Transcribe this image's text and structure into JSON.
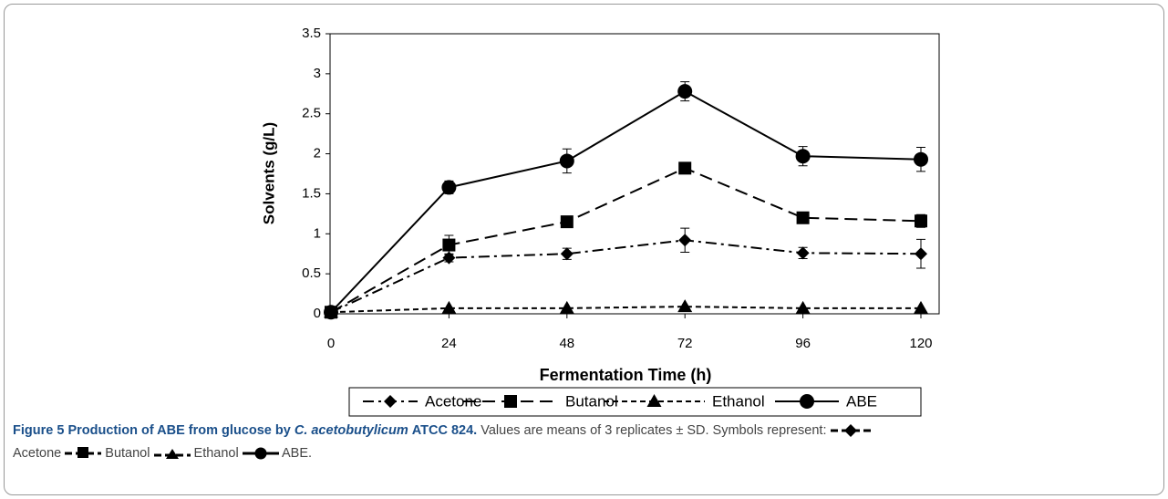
{
  "chart_data": {
    "type": "line",
    "x": [
      0,
      24,
      48,
      72,
      96,
      120
    ],
    "xlim": [
      0,
      120
    ],
    "xticks": [
      0,
      24,
      48,
      72,
      96,
      120
    ],
    "ylim": [
      0,
      3.5
    ],
    "yticks": [
      0,
      0.5,
      1,
      1.5,
      2,
      2.5,
      3,
      3.5
    ],
    "xlabel": "Fermentation Time (h)",
    "ylabel": "Solvents (g/L)",
    "legend": "bottom",
    "series": [
      {
        "name": "Acetone",
        "color": "#000000",
        "marker": "diamond",
        "linestyle": "dashdot",
        "values": [
          0.02,
          0.7,
          0.75,
          0.92,
          0.76,
          0.75
        ],
        "errors": [
          0,
          0.05,
          0.07,
          0.15,
          0.07,
          0.18
        ]
      },
      {
        "name": "Butanol",
        "color": "#000000",
        "marker": "square",
        "linestyle": "longdash",
        "values": [
          0.02,
          0.86,
          1.15,
          1.82,
          1.2,
          1.16
        ],
        "errors": [
          0,
          0.12,
          0.05,
          0.05,
          0.06,
          0.08
        ]
      },
      {
        "name": "Ethanol",
        "color": "#000000",
        "marker": "triangle",
        "linestyle": "dash",
        "values": [
          0.02,
          0.07,
          0.07,
          0.09,
          0.07,
          0.07
        ],
        "errors": [
          0,
          0,
          0,
          0,
          0,
          0
        ]
      },
      {
        "name": "ABE",
        "color": "#000000",
        "marker": "circle",
        "linestyle": "solid",
        "values": [
          0.02,
          1.58,
          1.91,
          2.78,
          1.97,
          1.93
        ],
        "errors": [
          0,
          0.08,
          0.15,
          0.12,
          0.12,
          0.15
        ]
      }
    ]
  },
  "caption": {
    "label": "Figure 5",
    "title_start": "Production of ABE from glucose by",
    "organism": "C. acetobutylicum",
    "title_end": "ATCC 824.",
    "text": "Values are means of 3 replicates ± SD. Symbols represent:",
    "symbols": [
      "Acetone",
      "Butanol",
      "Ethanol",
      "ABE."
    ]
  }
}
